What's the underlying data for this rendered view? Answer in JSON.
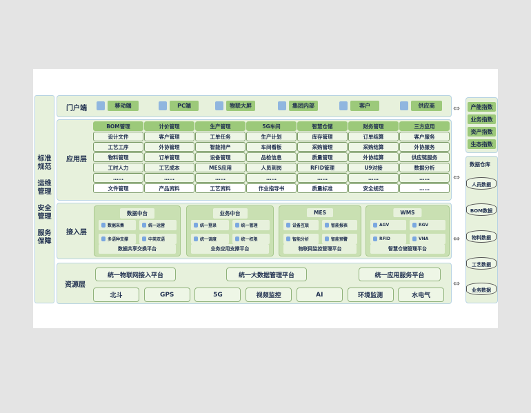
{
  "side_labels": [
    "标准规范",
    "运维管理",
    "安全管理",
    "服务保障"
  ],
  "portal": {
    "title": "门户端",
    "items": [
      {
        "label": "移动端",
        "icon": "tablet-icon"
      },
      {
        "label": "PC端",
        "icon": "monitor-icon"
      },
      {
        "label": "物联大屏",
        "icon": "screen-icon"
      },
      {
        "label": "集团内部",
        "icon": "building-icon"
      },
      {
        "label": "客户",
        "icon": "user-icon"
      },
      {
        "label": "供应商",
        "icon": "supplier-icon"
      }
    ]
  },
  "app": {
    "title": "应用层",
    "columns": [
      {
        "header": "BOM管理",
        "items": [
          "设计文件",
          "工艺工序",
          "物料管理",
          "工时人力",
          "……",
          "文件管理"
        ]
      },
      {
        "header": "计价管理",
        "items": [
          "客户管理",
          "外协管理",
          "订单管理",
          "工艺成本",
          "……",
          "产品资料"
        ]
      },
      {
        "header": "生产管理",
        "items": [
          "工单任务",
          "智能排产",
          "设备管理",
          "MES应用",
          "……",
          "工艺资料"
        ]
      },
      {
        "header": "5G车间",
        "items": [
          "生产计划",
          "车间看板",
          "品检信息",
          "人员到岗",
          "……",
          "作业指导书"
        ]
      },
      {
        "header": "智慧仓储",
        "items": [
          "库存管理",
          "采购管理",
          "质量管理",
          "RFID管理",
          "……",
          "质量标准"
        ]
      },
      {
        "header": "财务管理",
        "items": [
          "订单结算",
          "采购结算",
          "外协结算",
          "U9对接",
          "……",
          "安全规范"
        ]
      },
      {
        "header": "三方应用",
        "items": [
          "客户服务",
          "外协服务",
          "供应链服务",
          "数据分析",
          "……",
          "……"
        ]
      }
    ]
  },
  "access": {
    "title": "接入层",
    "panels": [
      {
        "title": "数据中台",
        "items": [
          "数据采集",
          "统一运营",
          "多语种支撑",
          "中英双语"
        ],
        "footer": "数据共享交换平台"
      },
      {
        "title": "业务中台",
        "items": [
          "统一登录",
          "统一管理",
          "统一调度",
          "统一权限"
        ],
        "footer": "业务应用支撑平台"
      },
      {
        "title": "MES",
        "items": [
          "设备互联",
          "智能报表",
          "智能分析",
          "智能预警"
        ],
        "footer": "物联网监控管理平台"
      },
      {
        "title": "WMS",
        "items": [
          "AGV",
          "RGV",
          "RFID",
          "VNA"
        ],
        "footer": "智慧仓储管理平台"
      }
    ]
  },
  "resource": {
    "title": "资源层",
    "platforms": [
      "统一物联网接入平台",
      "统一大数据管理平台",
      "统一应用服务平台"
    ],
    "items": [
      "北斗",
      "GPS",
      "5G",
      "视频监控",
      "AI",
      "环境监测",
      "水电气"
    ]
  },
  "indices": [
    "产能指数",
    "业务指数",
    "资产指数",
    "生态指数"
  ],
  "warehouse": {
    "title": "数据仓库",
    "items": [
      "人员数据",
      "BOM数据",
      "物料数据",
      "工艺数据",
      "业务数据"
    ]
  },
  "colors": {
    "layer_bg": "#e7f1dc",
    "accent_green": "#9cc97a",
    "border_blue": "#b7d3e3"
  }
}
